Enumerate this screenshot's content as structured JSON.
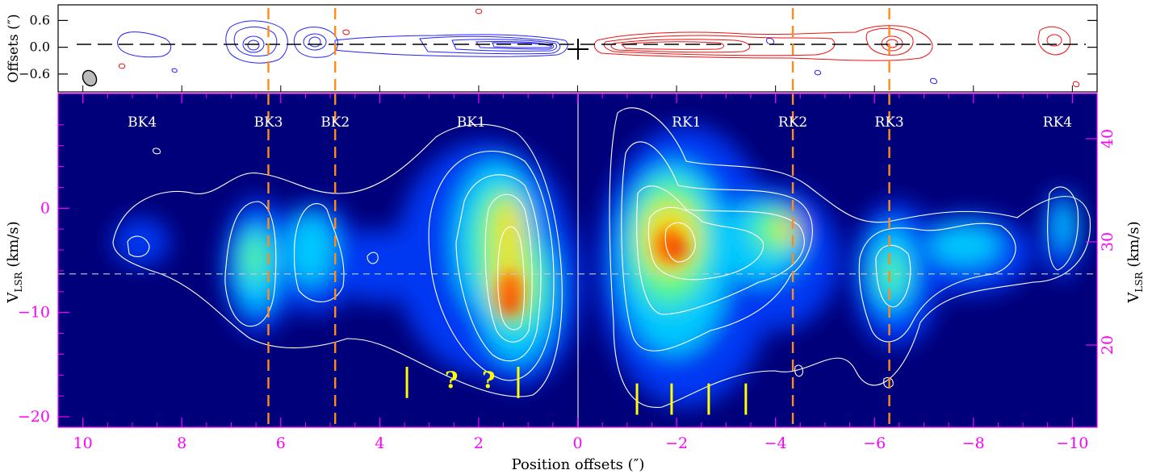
{
  "chart_data": [
    {
      "type": "heatmap",
      "panel": "top",
      "ylabel": "Offsets (″)",
      "ytick_labels": [
        "0.6",
        "0.0",
        "−0.6"
      ],
      "yticks": [
        0.6,
        0.0,
        -0.6
      ],
      "ylim": [
        -1.0,
        0.95
      ],
      "xlim": [
        10.5,
        -10.5
      ],
      "blue_contour_color": "#2222ff",
      "red_contour_color": "#ee1111",
      "jet_axis_style": "dashed black line",
      "source_marker": "black cross at 0,0",
      "beam": "grey filled ellipse lower-left"
    },
    {
      "type": "heatmap",
      "panel": "bottom",
      "xlabel": "Position offsets (″)",
      "ylabel_left_main": "V",
      "ylabel_left_sub": "LSR",
      "ylabel_left_unit": " (km/s)",
      "ylabel_right_main": "V",
      "ylabel_right_sub": "LSR",
      "ylabel_right_unit": " (km/s)",
      "xlim": [
        10.5,
        -10.5
      ],
      "xticks": [
        10,
        8,
        6,
        4,
        2,
        0,
        -2,
        -4,
        -6,
        -8,
        -10
      ],
      "xtick_labels": [
        "10",
        "8",
        "6",
        "4",
        "2",
        "0",
        "−2",
        "−4",
        "−6",
        "−8",
        "−10"
      ],
      "ylim_left": [
        -21,
        11
      ],
      "yticks_left": [
        0,
        -10,
        -20
      ],
      "ytick_labels_left": [
        "0",
        "−10",
        "−20"
      ],
      "yticks_right": [
        40,
        30,
        20
      ],
      "ytick_labels_right": [
        "40",
        "30",
        "20"
      ],
      "systemic_velocity_left": -6.3,
      "colormap": "jet",
      "knots": [
        {
          "name": "BK4",
          "x": 8.8,
          "dashed_line": false
        },
        {
          "name": "BK3",
          "x": 6.25,
          "dashed_line": true
        },
        {
          "name": "BK2",
          "x": 4.9,
          "dashed_line": true
        },
        {
          "name": "BK1",
          "x": 2.15,
          "dashed_line": false
        },
        {
          "name": "RK1",
          "x": -2.2,
          "dashed_line": false
        },
        {
          "name": "RK2",
          "x": -4.35,
          "dashed_line": true
        },
        {
          "name": "RK3",
          "x": -6.3,
          "dashed_line": true
        },
        {
          "name": "RK4",
          "x": -9.7,
          "dashed_line": false
        }
      ],
      "yellow_markers": [
        {
          "x": 3.45,
          "y_top": -15.2,
          "y_bottom": -18.2
        },
        {
          "x": 1.2,
          "y_top": -15.2,
          "y_bottom": -18.2
        },
        {
          "x": -1.2,
          "y_top": -16.8,
          "y_bottom": -19.8
        },
        {
          "x": -1.9,
          "y_top": -16.8,
          "y_bottom": -19.8
        },
        {
          "x": -2.65,
          "y_top": -16.8,
          "y_bottom": -19.8
        },
        {
          "x": -3.4,
          "y_top": -16.8,
          "y_bottom": -19.8
        }
      ],
      "question_marks": [
        {
          "text": "?",
          "x": 2.55,
          "y": -17.2
        },
        {
          "text": "?",
          "x": 1.8,
          "y": -17.2
        }
      ],
      "emission_blobs_x_v": [
        [
          8.8,
          -5.5
        ],
        [
          6.6,
          -8.5
        ],
        [
          6.4,
          -6.5
        ],
        [
          5.3,
          -3
        ],
        [
          5.2,
          -7.5
        ],
        [
          1.3,
          -9.5
        ],
        [
          1.35,
          -5
        ],
        [
          1.5,
          -2
        ],
        [
          -2.0,
          -5.2
        ],
        [
          -1.3,
          -6
        ],
        [
          -4.0,
          -4.5
        ],
        [
          -6.4,
          -7.5
        ],
        [
          -7.7,
          -5
        ],
        [
          -9.9,
          -3.5
        ]
      ]
    }
  ]
}
